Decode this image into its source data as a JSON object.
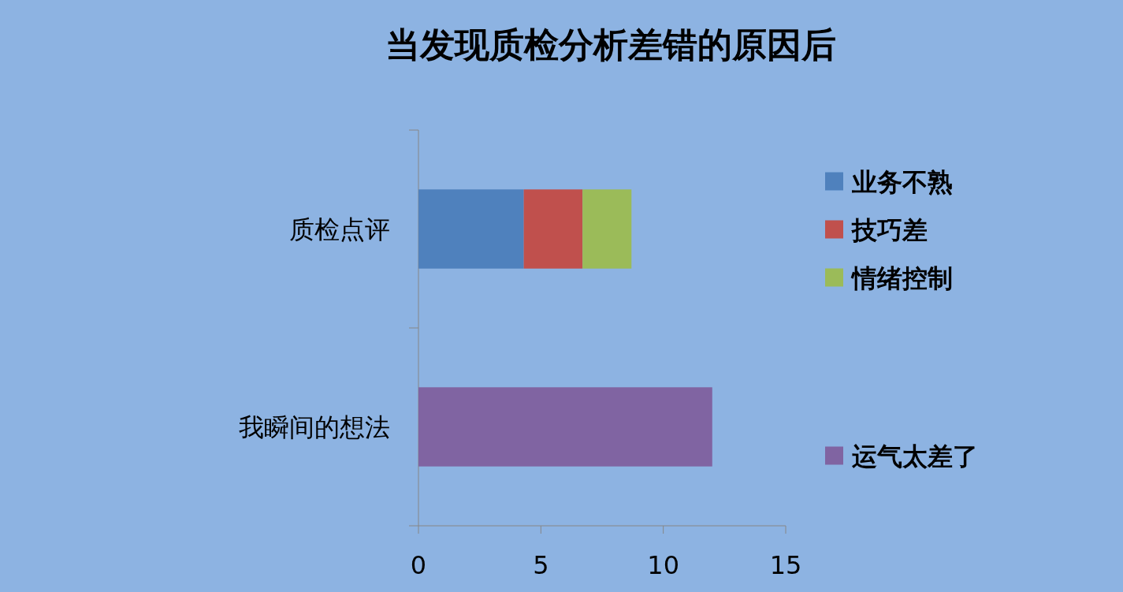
{
  "chart_data": {
    "type": "bar",
    "orientation": "horizontal",
    "stacked": true,
    "title": "当发现质检分析差错的原因后",
    "categories": [
      "质检点评",
      "我瞬间的想法"
    ],
    "series": [
      {
        "name": "业务不熟",
        "color": "#4f81bd",
        "values": [
          4.3,
          null
        ]
      },
      {
        "name": "技巧差",
        "color": "#c0504d",
        "values": [
          2.4,
          null
        ]
      },
      {
        "name": "情绪控制",
        "color": "#9bbb59",
        "values": [
          2.0,
          null
        ]
      },
      {
        "name": "运气太差了",
        "color": "#8064a2",
        "values": [
          null,
          12
        ]
      }
    ],
    "xlim": [
      0,
      15
    ],
    "xticks": [
      0,
      5,
      10,
      15
    ],
    "legend": "right"
  }
}
